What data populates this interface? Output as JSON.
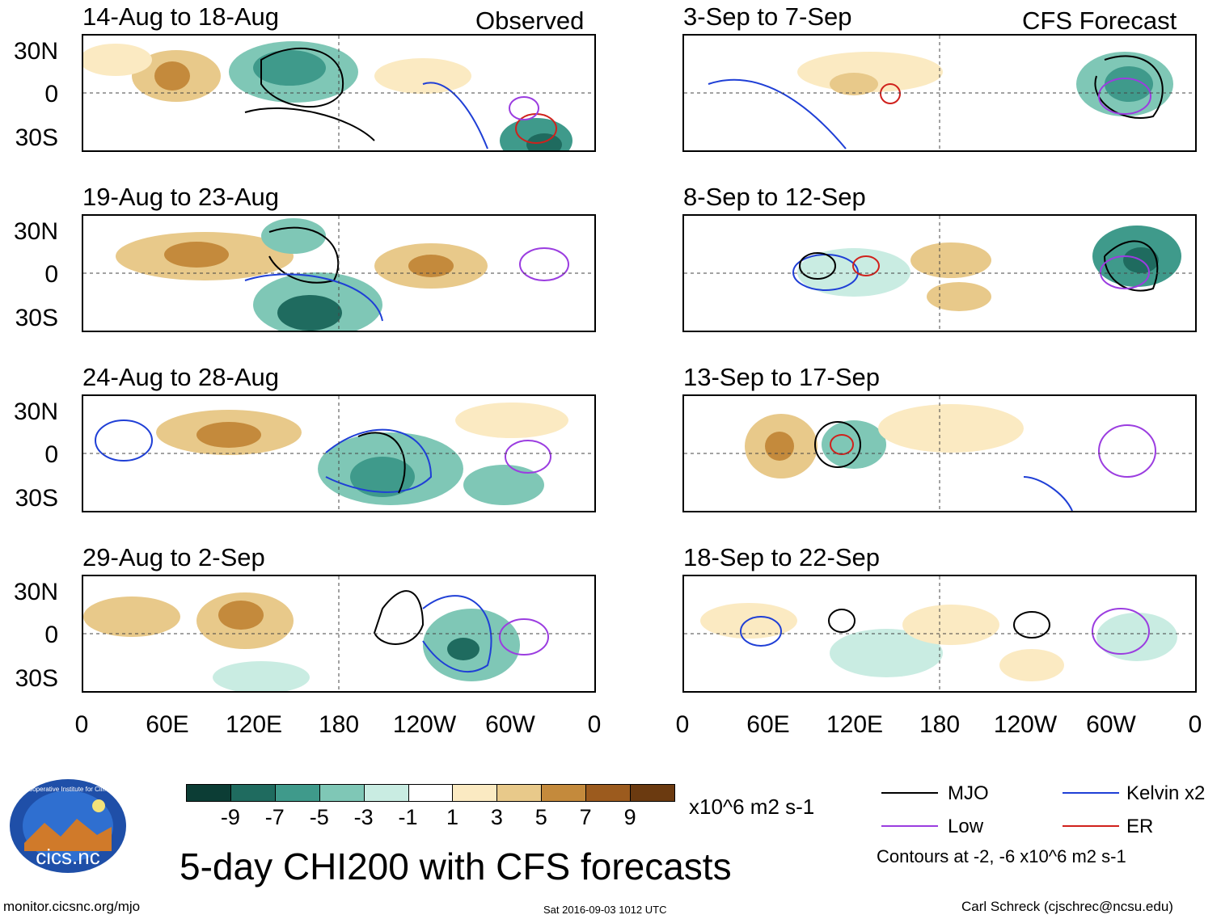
{
  "headers": {
    "observed": "Observed",
    "forecast": "CFS Forecast"
  },
  "panels": {
    "left": [
      {
        "title": "14-Aug to 18-Aug"
      },
      {
        "title": "19-Aug to 23-Aug"
      },
      {
        "title": "24-Aug to 28-Aug"
      },
      {
        "title": "29-Aug to 2-Sep"
      }
    ],
    "right": [
      {
        "title": "3-Sep to 7-Sep"
      },
      {
        "title": "8-Sep to 12-Sep"
      },
      {
        "title": "13-Sep to 17-Sep"
      },
      {
        "title": "18-Sep to 22-Sep"
      }
    ]
  },
  "lat_labels": [
    "30N",
    "0",
    "30S"
  ],
  "lon_labels": [
    "0",
    "60E",
    "120E",
    "180",
    "120W",
    "60W",
    "0"
  ],
  "colorbar": {
    "labels": [
      "-9",
      "-7",
      "-5",
      "-3",
      "-1",
      "1",
      "3",
      "5",
      "7",
      "9"
    ],
    "colors": [
      "#0c3d35",
      "#1f6b5f",
      "#3f9a8b",
      "#7fc7b6",
      "#c9ece2",
      "#ffffff",
      "#fbeac2",
      "#e8c98a",
      "#c48a3c",
      "#9c5b1e",
      "#6b3a10"
    ],
    "units": "x10^6 m2 s-1"
  },
  "legend": {
    "items": [
      {
        "label": "MJO",
        "color": "#000000"
      },
      {
        "label": "Kelvin x2",
        "color": "#1f3fd6"
      },
      {
        "label": "Low",
        "color": "#9b3de0"
      },
      {
        "label": "ER",
        "color": "#d0211c"
      }
    ],
    "note": "Contours at -2, -6 x10^6 m2 s-1"
  },
  "main_title": "5-day CHI200 with CFS forecasts",
  "logo": {
    "text": "cics.nc",
    "ring_text": "Cooperative Institute for Climate and Satellites"
  },
  "footer": {
    "left": "monitor.cicsnc.org/mjo",
    "center": "Sat 2016-09-03 1012 UTC",
    "right": "Carl Schreck (cjschrec@ncsu.edu)"
  }
}
